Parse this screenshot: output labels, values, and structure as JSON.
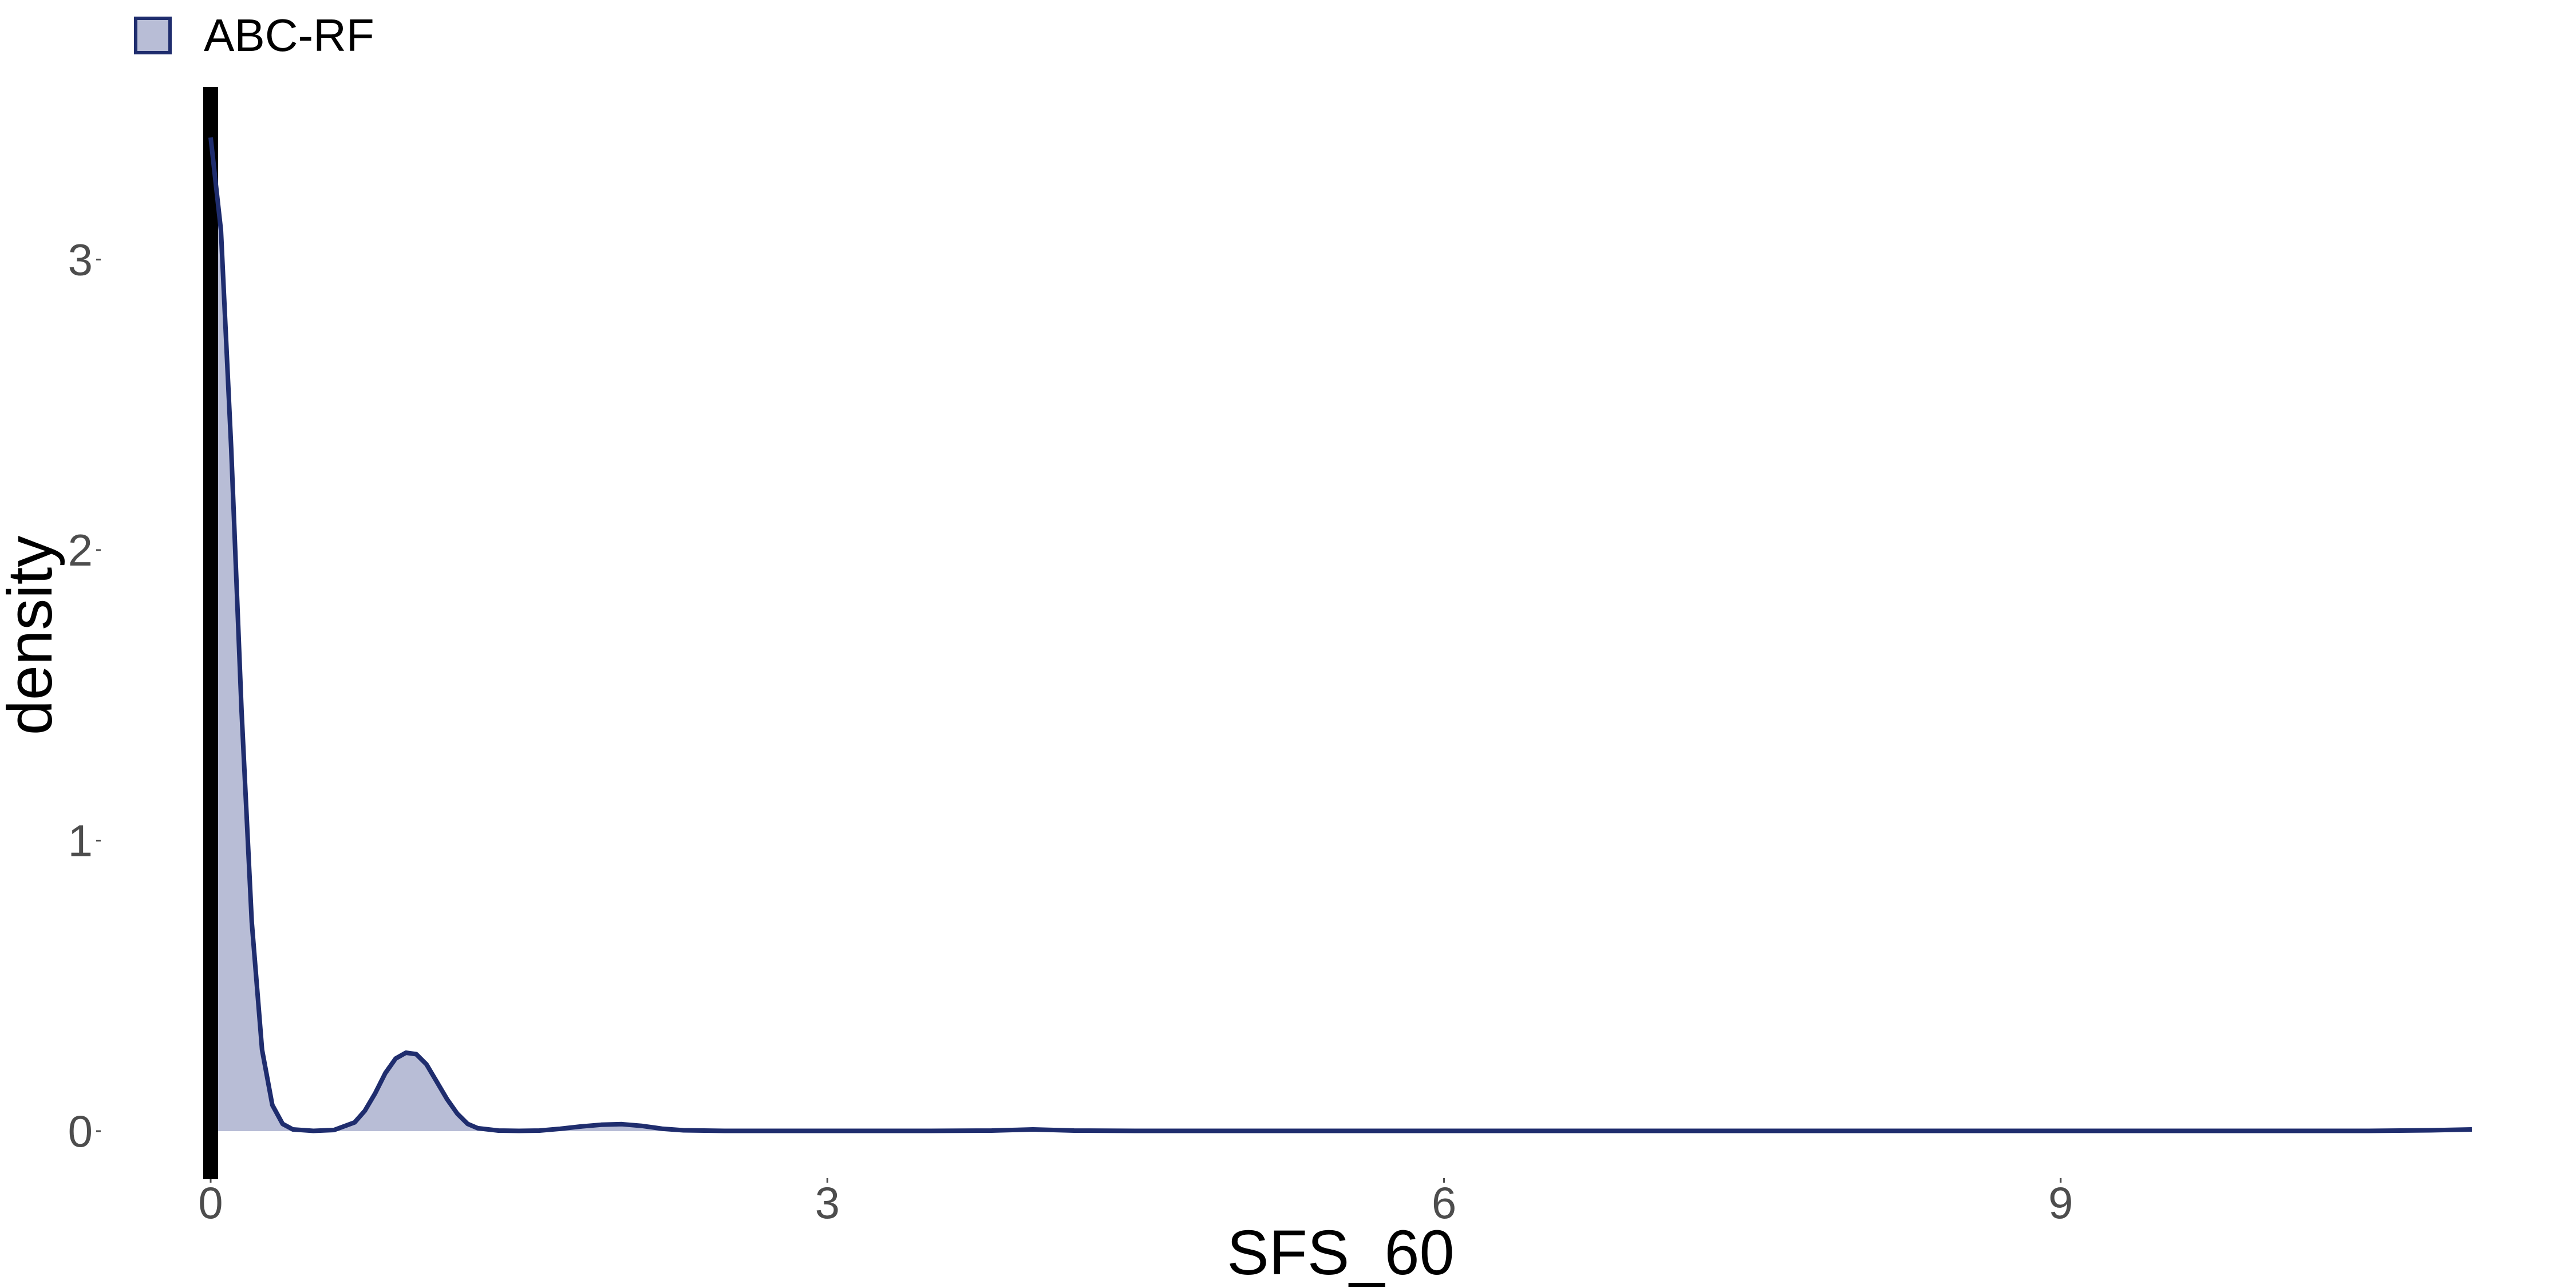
{
  "chart_data": {
    "type": "area",
    "xlabel": "SFS_60",
    "ylabel": "density",
    "xlim": [
      0,
      11
    ],
    "ylim": [
      0,
      3.45
    ],
    "x_ticks": [
      0,
      3,
      6,
      9
    ],
    "x_tick_labels": [
      "0",
      "3",
      "6",
      "9"
    ],
    "y_ticks": [
      0,
      1,
      2,
      3
    ],
    "y_tick_labels": [
      "0",
      "1",
      "2",
      "3"
    ],
    "grid": false,
    "legend_position": "top-left",
    "vline": {
      "x": 0
    },
    "series": [
      {
        "name": "ABC-RF",
        "fill_color": "#b8bdd6",
        "line_color": "#1f2d6e",
        "x": [
          0,
          0.05,
          0.1,
          0.15,
          0.2,
          0.25,
          0.3,
          0.35,
          0.4,
          0.5,
          0.6,
          0.7,
          0.75,
          0.8,
          0.85,
          0.9,
          0.95,
          1.0,
          1.05,
          1.1,
          1.15,
          1.2,
          1.25,
          1.3,
          1.4,
          1.5,
          1.6,
          1.7,
          1.8,
          1.9,
          2.0,
          2.1,
          2.2,
          2.3,
          2.5,
          3.0,
          3.5,
          3.8,
          3.9,
          4.0,
          4.1,
          4.2,
          4.5,
          5.0,
          6.0,
          7.0,
          8.0,
          9.0,
          10.0,
          10.5,
          10.8,
          11.0
        ],
        "y": [
          3.42,
          3.1,
          2.35,
          1.45,
          0.72,
          0.28,
          0.09,
          0.025,
          0.006,
          0.001,
          0.004,
          0.03,
          0.07,
          0.13,
          0.2,
          0.25,
          0.27,
          0.265,
          0.23,
          0.17,
          0.11,
          0.06,
          0.025,
          0.01,
          0.002,
          0.001,
          0.002,
          0.008,
          0.016,
          0.022,
          0.024,
          0.018,
          0.008,
          0.003,
          0.001,
          0.001,
          0.001,
          0.002,
          0.004,
          0.006,
          0.004,
          0.002,
          0.001,
          0.001,
          0.001,
          0.001,
          0.001,
          0.001,
          0.001,
          0.001,
          0.003,
          0.006
        ]
      }
    ]
  }
}
